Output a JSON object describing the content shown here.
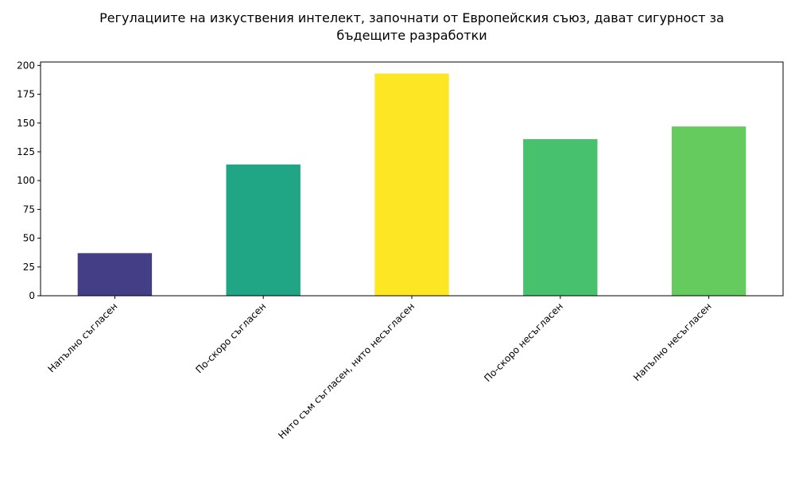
{
  "chart_data": {
    "type": "bar",
    "title": "Регулациите на изкуствения интелект, започнати от Европейския съюз, дават сигурност за бъдещите разработки",
    "categories": [
      "Напълно съгласен",
      "По-скоро съгласен",
      "Нито съм съгласен, нито несъгласен",
      "По-скоро несъгласен",
      "Напълно несъгласен"
    ],
    "values": [
      37,
      114,
      193,
      136,
      147
    ],
    "colors": [
      "#433e85",
      "#21a685",
      "#fde725",
      "#48c16e",
      "#65cb5e"
    ],
    "ylim": [
      0,
      203
    ],
    "yticks": [
      0,
      25,
      50,
      75,
      100,
      125,
      150,
      175,
      200
    ],
    "grid": false
  }
}
